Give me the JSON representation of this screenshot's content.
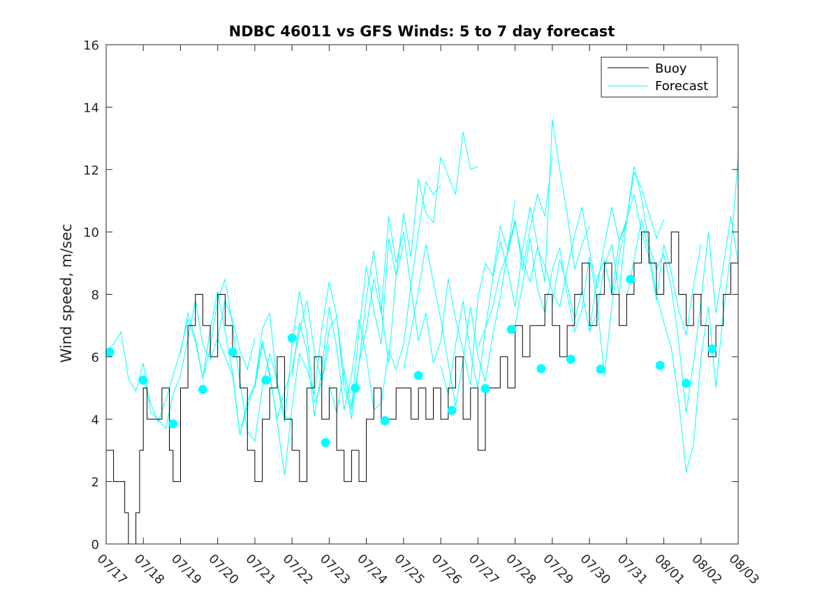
{
  "chart_data": {
    "type": "line",
    "title": "NDBC 46011 vs GFS Winds: 5 to 7 day forecast",
    "xlabel": "",
    "ylabel": "Wind speed, m/sec",
    "x_unit": "day",
    "xlim": [
      0,
      17
    ],
    "ylim": [
      0,
      16
    ],
    "yticks": [
      0,
      2,
      4,
      6,
      8,
      10,
      12,
      14,
      16
    ],
    "xtick_labels": [
      "07/17",
      "07/18",
      "07/19",
      "07/20",
      "07/21",
      "07/22",
      "07/23",
      "07/24",
      "07/25",
      "07/26",
      "07/27",
      "07/28",
      "07/29",
      "07/30",
      "07/31",
      "08/01",
      "08/02",
      "08/03"
    ],
    "grid": false,
    "legend": {
      "placement": "top-right",
      "entries": [
        "Buoy",
        "Forecast"
      ]
    },
    "colors": {
      "buoy": "#000000",
      "forecast": "#00ffff",
      "axis": "#262626"
    },
    "series": [
      {
        "name": "Buoy",
        "x": [
          0.0,
          0.2,
          0.4,
          0.5,
          0.6,
          0.8,
          0.9,
          1.0,
          1.1,
          1.3,
          1.5,
          1.7,
          1.8,
          2.0,
          2.2,
          2.4,
          2.6,
          2.8,
          3.0,
          3.2,
          3.4,
          3.6,
          3.8,
          4.0,
          4.2,
          4.4,
          4.6,
          4.8,
          5.0,
          5.2,
          5.4,
          5.6,
          5.8,
          6.0,
          6.2,
          6.4,
          6.6,
          6.8,
          7.0,
          7.2,
          7.4,
          7.6,
          7.8,
          8.0,
          8.2,
          8.4,
          8.6,
          8.8,
          9.0,
          9.2,
          9.4,
          9.6,
          9.8,
          10.0,
          10.2,
          10.4,
          10.6,
          10.8,
          11.0,
          11.2,
          11.4,
          11.6,
          11.8,
          12.0,
          12.2,
          12.4,
          12.6,
          12.8,
          13.0,
          13.2,
          13.4,
          13.6,
          13.8,
          14.0,
          14.2,
          14.4,
          14.6,
          14.8,
          15.0,
          15.2,
          15.4,
          15.6,
          15.8,
          16.0,
          16.2,
          16.4,
          16.6,
          16.8,
          17.0
        ],
        "y": [
          3,
          2,
          2,
          1,
          0,
          1,
          3,
          5,
          4,
          4,
          5,
          3,
          2,
          5,
          7,
          8,
          7,
          6,
          8,
          7,
          6,
          5,
          3,
          2,
          4,
          5,
          6,
          4,
          3,
          2,
          5,
          6,
          4,
          5,
          3,
          2,
          3,
          2,
          4,
          5,
          4,
          4,
          5,
          5,
          4,
          5,
          4,
          5,
          4,
          5,
          6,
          4,
          5,
          3,
          5,
          5,
          6,
          5,
          7,
          6,
          7,
          7,
          8,
          7,
          6,
          7,
          8,
          9,
          7,
          8,
          9,
          8,
          7,
          8,
          9,
          10,
          9,
          8,
          9,
          10,
          8,
          7,
          8,
          7,
          6,
          7,
          8,
          9,
          9
        ]
      },
      {
        "name": "Forecast",
        "runs": [
          {
            "x": [
              0.0,
              0.2,
              0.4,
              0.6,
              0.8,
              1.0,
              1.2,
              1.4,
              1.6,
              1.8,
              2.0,
              2.2,
              2.4,
              2.6,
              2.8,
              3.0,
              3.2,
              3.4,
              3.6,
              3.8,
              4.0
            ],
            "y": [
              6.2,
              6.4,
              6.8,
              5.3,
              4.9,
              5.8,
              4.2,
              4.0,
              3.7,
              4.8,
              5.4,
              6.6,
              7.8,
              6.4,
              5.9,
              6.6,
              7.8,
              7.2,
              6.2,
              5.6,
              6.6
            ]
          },
          {
            "x": [
              1.0,
              1.2,
              1.4,
              1.6,
              1.8,
              2.0,
              2.2,
              2.4,
              2.6,
              2.8,
              3.0,
              3.2,
              3.4,
              3.6,
              3.8,
              4.0,
              4.2,
              4.4,
              4.6,
              4.8,
              5.0
            ],
            "y": [
              5.3,
              4.5,
              3.9,
              4.6,
              5.4,
              6.2,
              7.2,
              6.5,
              5.3,
              6.3,
              7.8,
              8.5,
              7.0,
              5.2,
              3.6,
              3.3,
              5.0,
              6.1,
              5.2,
              4.1,
              4.0
            ]
          },
          {
            "x": [
              2.0,
              2.2,
              2.4,
              2.6,
              2.8,
              3.0,
              3.2,
              3.4,
              3.6,
              3.8,
              4.0,
              4.2,
              4.4,
              4.6,
              4.8,
              5.0,
              5.2,
              5.4,
              5.6,
              5.8,
              6.0
            ],
            "y": [
              6.1,
              7.4,
              6.6,
              5.3,
              6.9,
              8.1,
              6.8,
              5.5,
              3.5,
              4.6,
              5.1,
              6.5,
              5.4,
              4.0,
              4.9,
              5.6,
              6.8,
              7.8,
              6.2,
              5.2,
              6.4
            ]
          },
          {
            "x": [
              3.0,
              3.2,
              3.4,
              3.6,
              3.8,
              4.0,
              4.2,
              4.4,
              4.6,
              4.8,
              5.0,
              5.2,
              5.4,
              5.6,
              5.8,
              6.0,
              6.2,
              6.4,
              6.6,
              6.8,
              7.0
            ],
            "y": [
              6.6,
              6.0,
              5.4,
              3.5,
              4.4,
              5.1,
              6.9,
              7.4,
              5.1,
              3.9,
              6.4,
              8.1,
              6.7,
              4.5,
              5.2,
              6.9,
              7.3,
              5.4,
              4.0,
              5.8,
              6.9
            ]
          },
          {
            "x": [
              4.0,
              4.2,
              4.4,
              4.6,
              4.8,
              5.0,
              5.2,
              5.4,
              5.6,
              5.8,
              6.0,
              6.2,
              6.4,
              6.6,
              6.8,
              7.0,
              7.2,
              7.4,
              7.6,
              7.8,
              8.0
            ],
            "y": [
              5.0,
              6.4,
              5.5,
              3.9,
              2.2,
              4.4,
              6.1,
              5.6,
              4.8,
              6.9,
              8.4,
              7.3,
              5.0,
              4.3,
              5.8,
              7.9,
              9.4,
              7.5,
              5.8,
              8.6,
              9.6
            ]
          },
          {
            "x": [
              5.0,
              5.2,
              5.4,
              5.6,
              5.8,
              6.0,
              6.2,
              6.4,
              6.6,
              6.8,
              7.0,
              7.2,
              7.4,
              7.6,
              7.8,
              8.0,
              8.2,
              8.4,
              8.6,
              8.8,
              9.0
            ],
            "y": [
              5.4,
              7.1,
              6.2,
              4.1,
              5.6,
              7.6,
              6.3,
              4.3,
              5.4,
              7.2,
              6.0,
              4.3,
              4.5,
              6.2,
              5.6,
              6.4,
              8.3,
              10.0,
              11.6,
              11.2,
              11.5
            ]
          },
          {
            "x": [
              6.0,
              6.2,
              6.4,
              6.6,
              6.8,
              7.0,
              7.2,
              7.4,
              7.6,
              7.8,
              8.0,
              8.2,
              8.4,
              8.6,
              8.8,
              9.0,
              9.2,
              9.4,
              9.6,
              9.8,
              10.0
            ],
            "y": [
              5.1,
              4.2,
              5.6,
              4.4,
              6.8,
              8.9,
              7.5,
              6.4,
              9.8,
              8.6,
              10.6,
              9.2,
              11.7,
              10.6,
              10.3,
              12.4,
              11.8,
              11.2,
              13.2,
              12.0,
              12.1
            ]
          },
          {
            "x": [
              7.0,
              7.2,
              7.4,
              7.6,
              7.8,
              8.0,
              8.2,
              8.4,
              8.6,
              8.8,
              9.0,
              9.2,
              9.4,
              9.6,
              9.8,
              10.0,
              10.2,
              10.4,
              10.6,
              10.8,
              11.0
            ],
            "y": [
              6.9,
              8.5,
              7.4,
              10.5,
              9.0,
              10.0,
              8.2,
              6.5,
              7.4,
              5.8,
              6.5,
              8.5,
              7.2,
              6.2,
              5.1,
              7.9,
              9.0,
              8.6,
              10.2,
              9.4,
              11.0
            ]
          },
          {
            "x": [
              8.0,
              8.2,
              8.4,
              8.6,
              8.8,
              9.0,
              9.2,
              9.4,
              9.6,
              9.8,
              10.0,
              10.2,
              10.4,
              10.6,
              10.8,
              11.0,
              11.2,
              11.4,
              11.6,
              11.8,
              12.0
            ],
            "y": [
              5.6,
              6.8,
              8.1,
              9.6,
              8.4,
              7.2,
              5.8,
              4.4,
              5.9,
              7.6,
              6.0,
              5.2,
              6.7,
              7.9,
              9.4,
              10.4,
              8.8,
              10.1,
              11.2,
              10.5,
              12.4
            ]
          },
          {
            "x": [
              9.0,
              9.2,
              9.4,
              9.6,
              9.8,
              10.0,
              10.2,
              10.4,
              10.6,
              10.8,
              11.0,
              11.2,
              11.4,
              11.6,
              11.8,
              12.0,
              12.2,
              12.4,
              12.6,
              12.8,
              13.0
            ],
            "y": [
              5.7,
              4.8,
              6.4,
              7.8,
              6.1,
              5.0,
              6.9,
              8.5,
              9.7,
              8.8,
              7.6,
              9.4,
              10.8,
              9.6,
              8.4,
              13.6,
              12.0,
              10.6,
              8.8,
              9.6,
              10.2
            ]
          },
          {
            "x": [
              10.0,
              10.2,
              10.4,
              10.6,
              10.8,
              11.0,
              11.2,
              11.4,
              11.6,
              11.8,
              12.0,
              12.2,
              12.4,
              12.6,
              12.8,
              13.0,
              13.2,
              13.4,
              13.6,
              13.8,
              14.0
            ],
            "y": [
              6.3,
              6.9,
              7.6,
              8.7,
              9.3,
              10.3,
              9.1,
              8.4,
              9.5,
              8.9,
              8.1,
              7.6,
              8.8,
              9.9,
              10.8,
              9.4,
              8.2,
              9.6,
              10.8,
              9.7,
              10.3
            ]
          },
          {
            "x": [
              11.0,
              11.2,
              11.4,
              11.6,
              11.8,
              12.0,
              12.2,
              12.4,
              12.6,
              12.8,
              13.0,
              13.2,
              13.4,
              13.6,
              13.8,
              14.0,
              14.2,
              14.4,
              14.6,
              14.8,
              15.0
            ],
            "y": [
              7.0,
              8.3,
              9.8,
              8.2,
              7.4,
              8.8,
              9.5,
              8.0,
              6.8,
              7.5,
              9.2,
              7.8,
              5.4,
              7.6,
              9.2,
              10.4,
              11.9,
              11.4,
              10.6,
              9.8,
              10.4
            ]
          },
          {
            "x": [
              12.0,
              12.2,
              12.4,
              12.6,
              12.8,
              13.0,
              13.2,
              13.4,
              13.6,
              13.8,
              14.0,
              14.2,
              14.4,
              14.6,
              14.8,
              15.0,
              15.2,
              15.4,
              15.6,
              15.8,
              16.0
            ],
            "y": [
              7.7,
              9.1,
              8.3,
              7.2,
              8.1,
              6.8,
              7.4,
              8.9,
              9.6,
              8.0,
              10.4,
              11.2,
              10.0,
              9.2,
              7.8,
              9.6,
              8.7,
              7.5,
              6.7,
              8.3,
              9.6
            ]
          },
          {
            "x": [
              13.0,
              13.2,
              13.4,
              13.6,
              13.8,
              14.0,
              14.2,
              14.4,
              14.6,
              14.8,
              15.0,
              15.2,
              15.4,
              15.6,
              15.8,
              16.0,
              16.2,
              16.4,
              16.6,
              16.8,
              17.0
            ],
            "y": [
              6.8,
              8.5,
              9.1,
              8.0,
              9.7,
              10.4,
              12.1,
              11.1,
              9.6,
              8.8,
              9.3,
              8.2,
              6.5,
              4.2,
              5.8,
              7.8,
              10.0,
              7.4,
              8.9,
              10.5,
              9.0
            ]
          },
          {
            "x": [
              14.0,
              14.2,
              14.4,
              14.6,
              14.8,
              15.0,
              15.2,
              15.4,
              15.6,
              15.8,
              16.0,
              16.2,
              16.4,
              16.6,
              16.8,
              17.0
            ],
            "y": [
              7.9,
              9.1,
              10.4,
              9.4,
              8.0,
              7.1,
              6.3,
              4.6,
              2.3,
              3.2,
              6.0,
              7.6,
              5.0,
              7.4,
              9.4,
              12.4
            ]
          }
        ],
        "markers": {
          "x": [
            0.1,
            1.0,
            1.8,
            2.6,
            3.4,
            4.3,
            5.0,
            5.9,
            6.7,
            7.5,
            8.4,
            9.3,
            10.2,
            10.9,
            11.7,
            12.5,
            13.3,
            14.1,
            14.9,
            15.6,
            16.3
          ],
          "y": [
            6.15,
            5.25,
            3.85,
            4.95,
            6.15,
            5.25,
            6.6,
            3.25,
            5.0,
            3.95,
            5.4,
            4.28,
            4.98,
            6.88,
            5.62,
            5.92,
            5.6,
            8.48,
            5.72,
            5.15,
            6.25
          ]
        }
      }
    ]
  }
}
